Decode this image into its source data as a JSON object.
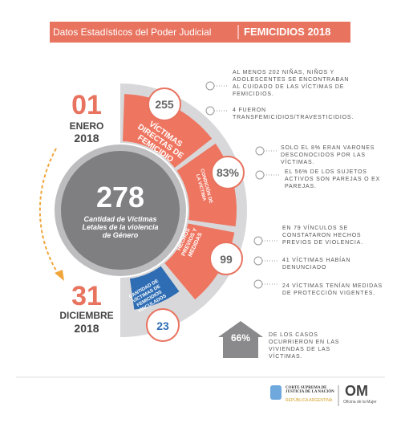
{
  "header": {
    "title": "Datos Estadísticos del Poder Judicial",
    "subtitle": "FEMICIDIOS 2018"
  },
  "start": {
    "day": "01",
    "month": "ENERO",
    "year": "2018"
  },
  "end": {
    "day": "31",
    "month": "DICIEMBRE",
    "year": "2018"
  },
  "center": {
    "value": "278",
    "label": "Cantidad de Víctimas Letales de la violencia de Género"
  },
  "segments": [
    {
      "label": "VÍCTIMAS DIRECTAS DE FEMICIDIO",
      "value": "255"
    },
    {
      "label": "CONDICIÓN DE LA VÍCTIMA",
      "value": "83%"
    },
    {
      "label": "HECHOS PREVIOS Y MEDIDAS",
      "value": "99"
    },
    {
      "label": "CANTIDAD DE VÍCTIMAS DE FEMICIDIOS VINCULADOS",
      "value": "23"
    }
  ],
  "notes": [
    "AL MENOS 202 NIÑAS, NIÑOS Y ADOLESCENTES SE ENCONTRABAN AL CUIDADO DE LAS VÍCTIMAS DE FEMICIDIOS.",
    "4 FUERON TRANSFEMICIDIOS/TRAVESTICIDIOS.",
    "SOLO EL 8% ERAN VARONES DESCONOCIDOS POR LAS VÍCTIMAS.",
    "EL 56% DE LOS SUJETOS ACTIVOS SON PAREJAS O EX PAREJAS.",
    "EN 79 VÍNCULOS SE CONSTATARON HECHOS PREVIOS DE VIOLENCIA.",
    "41 VÍCTIMAS HABÍAN DENUNCIADO",
    "24 VÍCTIMAS TENÍAN MEDIDAS DE PROTECCIÓN VIGENTES."
  ],
  "home": {
    "value": "66%",
    "label": "DE LOS CASOS OCURRIERON EN LAS VIVIENDAS DE LAS VÍCTIMAS."
  },
  "footer": {
    "court": "CORTE SUPREMA DE JUSTICIA DE LA NACIÓN",
    "country": "REPÚBLICA ARGENTINA",
    "om": "OM",
    "office": "Oficina de la Mujer"
  }
}
